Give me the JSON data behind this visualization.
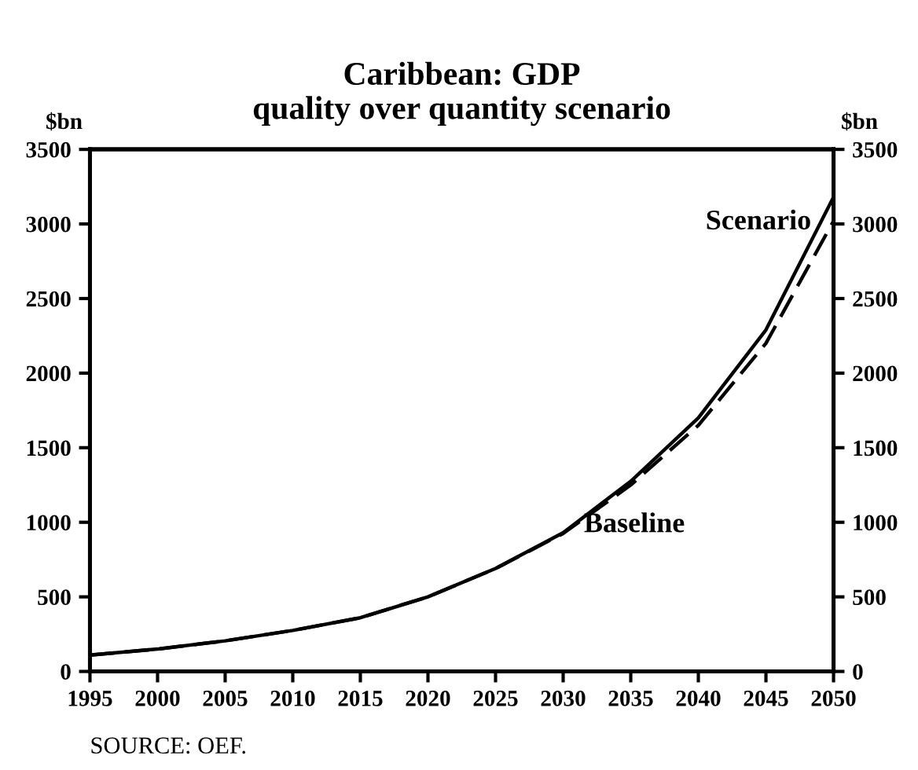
{
  "chart_data": {
    "type": "line",
    "title": "Caribbean: GDP\nquality over quantity scenario",
    "ylabel": "$bn",
    "y2label": "$bn",
    "x": [
      1995,
      2000,
      2005,
      2010,
      2015,
      2020,
      2025,
      2030,
      2035,
      2040,
      2045,
      2050
    ],
    "series": [
      {
        "name": "Scenario",
        "color": "#000000",
        "line_style": "solid",
        "values": [
          110,
          150,
          205,
          275,
          360,
          500,
          690,
          930,
          1275,
          1700,
          2290,
          3180
        ]
      },
      {
        "name": "Baseline",
        "color": "#000000",
        "line_style": "dashed",
        "values": [
          110,
          150,
          205,
          275,
          360,
          500,
          690,
          925,
          1250,
          1650,
          2200,
          3020
        ]
      }
    ],
    "xlim": [
      1995,
      2050
    ],
    "xticks": [
      1995,
      2000,
      2005,
      2010,
      2015,
      2020,
      2025,
      2030,
      2035,
      2040,
      2045,
      2050
    ],
    "ylim": [
      0,
      3500
    ],
    "yticks": [
      0,
      500,
      1000,
      1500,
      2000,
      2500,
      3000,
      3500
    ],
    "y2lim": [
      0,
      3500
    ],
    "y2ticks": [
      0,
      500,
      1000,
      1500,
      2000,
      2500,
      3000,
      3500
    ],
    "grid": false,
    "legend": false,
    "marker": "none",
    "annotations": [
      "SOURCE: OEF."
    ]
  }
}
